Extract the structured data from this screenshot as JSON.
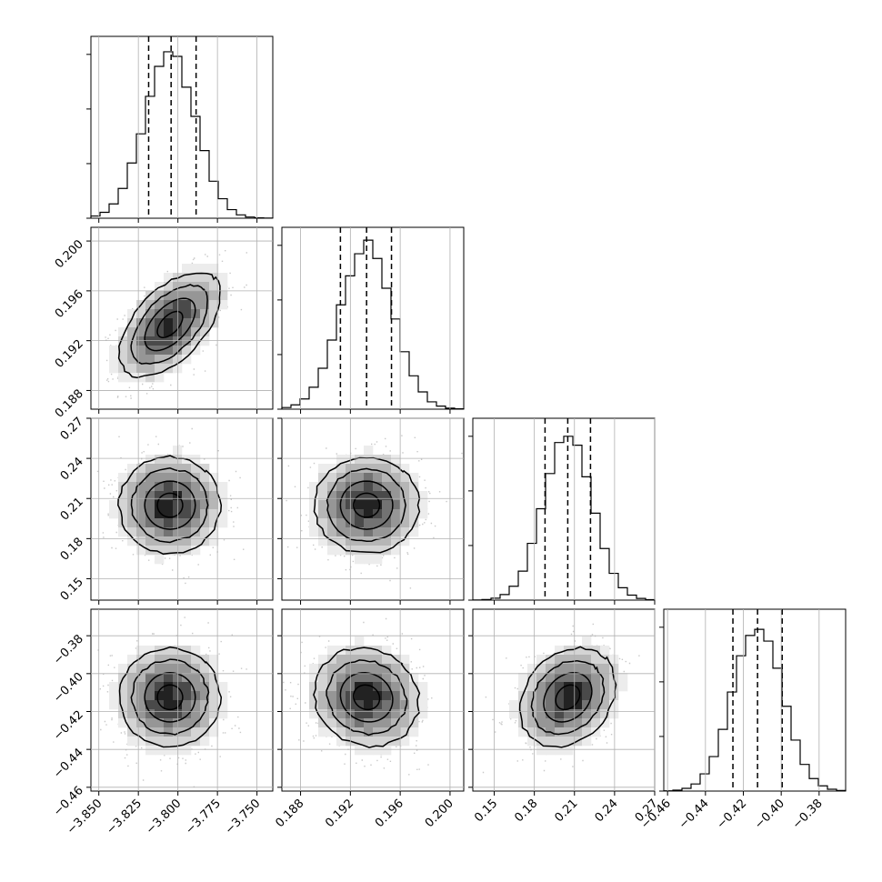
{
  "chart_data": {
    "type": "corner",
    "grid": true,
    "parameters": [
      {
        "index": 0,
        "range": [
          -3.855,
          -3.74
        ],
        "mean": -3.805,
        "sigma": 0.016,
        "quantiles": [
          -3.8185,
          -3.8043,
          -3.7885
        ],
        "tick_values": [
          -3.85,
          -3.825,
          -3.8,
          -3.775,
          -3.75
        ],
        "tick_labels": [
          "−3.850",
          "−3.825",
          "−3.800",
          "−3.775",
          "−3.750"
        ]
      },
      {
        "index": 1,
        "range": [
          0.1865,
          0.2011
        ],
        "mean": 0.1933,
        "sigma": 0.0021,
        "quantiles": [
          0.1912,
          0.1933,
          0.1953
        ],
        "tick_values": [
          0.188,
          0.192,
          0.196,
          0.2
        ],
        "tick_labels": [
          "0.188",
          "0.192",
          "0.196",
          "0.200"
        ]
      },
      {
        "index": 2,
        "range": [
          0.134,
          0.27
        ],
        "mean": 0.205,
        "sigma": 0.018,
        "quantiles": [
          0.188,
          0.205,
          0.222
        ],
        "tick_values": [
          0.15,
          0.18,
          0.21,
          0.24,
          0.27
        ],
        "tick_labels": [
          "0.15",
          "0.18",
          "0.21",
          "0.24",
          "0.27"
        ]
      },
      {
        "index": 3,
        "range": [
          -0.462,
          -0.366
        ],
        "mean": -0.4125,
        "sigma": 0.013,
        "quantiles": [
          -0.4255,
          -0.4125,
          -0.3995
        ],
        "tick_values": [
          -0.46,
          -0.44,
          -0.42,
          -0.4,
          -0.38
        ],
        "tick_labels": [
          "−0.46",
          "−0.44",
          "−0.42",
          "−0.40",
          "−0.38"
        ]
      }
    ],
    "correlations": {
      "0-1": 0.55,
      "0-2": 0.0,
      "0-3": 0.0,
      "1-2": 0.0,
      "1-3": -0.1,
      "2-3": 0.25
    },
    "contour_levels_sigma": [
      0.5,
      1.0,
      1.5,
      2.0
    ]
  }
}
